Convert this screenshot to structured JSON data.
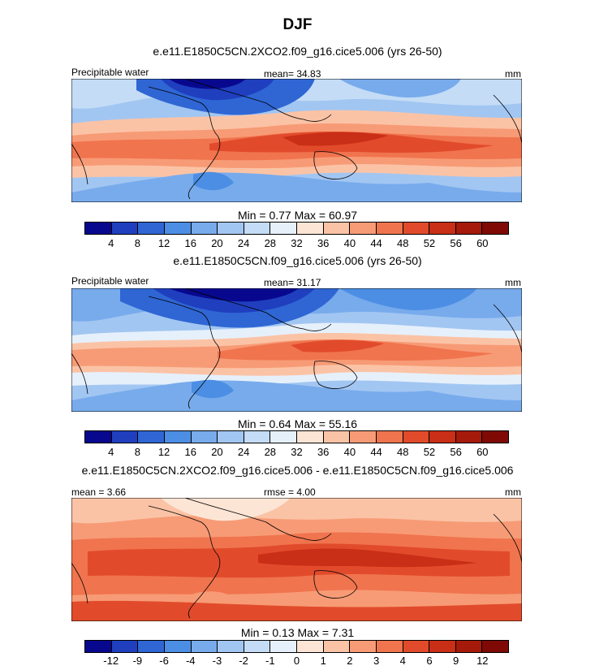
{
  "season": "DJF",
  "panels": [
    {
      "case_title": "e.e11.E1850C5CN.2XCO2.f09_g16.cice5.006 (yrs 26-50)",
      "left_label": "Precipitable water",
      "center_label": "mean=  34.83",
      "right_label": "mm",
      "min_label": "Min =",
      "min_value": "0.77",
      "max_label": "Max =",
      "max_value": "60.97"
    },
    {
      "case_title": "e.e11.E1850C5CN.f09_g16.cice5.006 (yrs 26-50)",
      "left_label": "Precipitable water",
      "center_label": "mean=  31.17",
      "right_label": "mm",
      "min_label": "Min =",
      "min_value": "0.64",
      "max_label": "Max =",
      "max_value": "55.16"
    },
    {
      "case_title": "e.e11.E1850C5CN.2XCO2.f09_g16.cice5.006 - e.e11.E1850C5CN.f09_g16.cice5.006",
      "left_label": "mean =   3.66",
      "center_label": "rmse =   4.00",
      "right_label": "mm",
      "min_label": "Min =",
      "min_value": "0.13",
      "max_label": "Max =",
      "max_value": "7.31"
    }
  ],
  "colorbars": {
    "absolute": {
      "colors": [
        "#08088f",
        "#1f3fbf",
        "#2f66d4",
        "#4c8ee4",
        "#78abec",
        "#a2c6f2",
        "#c4dcf6",
        "#e6f0fb",
        "#fde5d5",
        "#fbc3a6",
        "#f79b76",
        "#f0744e",
        "#e14b2b",
        "#c92e16",
        "#a51a0b",
        "#7f0a05"
      ],
      "ticks": [
        "4",
        "8",
        "12",
        "16",
        "20",
        "24",
        "28",
        "32",
        "36",
        "40",
        "44",
        "48",
        "52",
        "56",
        "60"
      ]
    },
    "difference": {
      "colors": [
        "#08088f",
        "#1f3fbf",
        "#2f66d4",
        "#4c8ee4",
        "#78abec",
        "#a2c6f2",
        "#c4dcf6",
        "#e6f0fb",
        "#fde5d5",
        "#fbc3a6",
        "#f79b76",
        "#f0744e",
        "#e14b2b",
        "#c92e16",
        "#a51a0b",
        "#7f0a05"
      ],
      "ticks": [
        "-12",
        "-9",
        "-6",
        "-4",
        "-3",
        "-2",
        "-1",
        "0",
        "1",
        "2",
        "3",
        "4",
        "6",
        "9",
        "12"
      ]
    }
  },
  "chart_data": [
    {
      "type": "heatmap",
      "title": "DJF",
      "subtitle": "e.e11.E1850C5CN.2XCO2.f09_g16.cice5.006 (yrs 26-50)",
      "variable": "Precipitable water",
      "units": "mm",
      "mean": 34.83,
      "min": 0.77,
      "max": 60.97,
      "colorbar_levels": [
        4,
        8,
        12,
        16,
        20,
        24,
        28,
        32,
        36,
        40,
        44,
        48,
        52,
        56,
        60
      ]
    },
    {
      "type": "heatmap",
      "title": "DJF",
      "subtitle": "e.e11.E1850C5CN.f09_g16.cice5.006 (yrs 26-50)",
      "variable": "Precipitable water",
      "units": "mm",
      "mean": 31.17,
      "min": 0.64,
      "max": 55.16,
      "colorbar_levels": [
        4,
        8,
        12,
        16,
        20,
        24,
        28,
        32,
        36,
        40,
        44,
        48,
        52,
        56,
        60
      ]
    },
    {
      "type": "heatmap",
      "title": "DJF",
      "subtitle": "e.e11.E1850C5CN.2XCO2.f09_g16.cice5.006 - e.e11.E1850C5CN.f09_g16.cice5.006",
      "units": "mm",
      "mean": 3.66,
      "rmse": 4.0,
      "min": 0.13,
      "max": 7.31,
      "colorbar_levels": [
        -12,
        -9,
        -6,
        -4,
        -3,
        -2,
        -1,
        0,
        1,
        2,
        3,
        4,
        6,
        9,
        12
      ]
    }
  ]
}
